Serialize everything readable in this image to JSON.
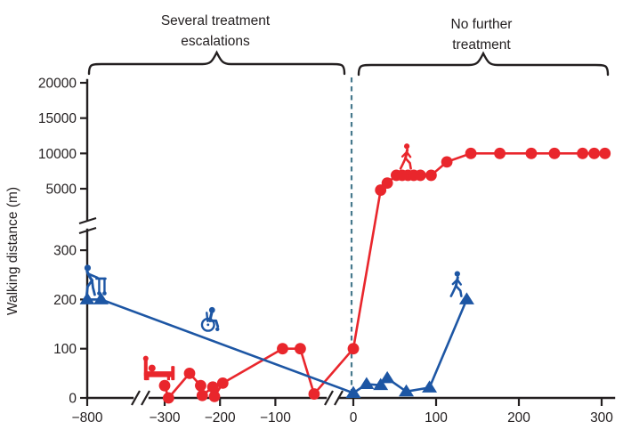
{
  "annotations": {
    "left_label_line1": "Several treatment",
    "left_label_line2": "escalations",
    "right_label_line1": "No further",
    "right_label_line2": "treatment"
  },
  "colors": {
    "red_series": "#e9262c",
    "blue_series": "#1d56a4",
    "event_line": "#47798d",
    "axis": "#231f20",
    "background": "#ffffff"
  },
  "chart_data": {
    "type": "line",
    "title": "",
    "xlabel": "",
    "ylabel": "Walking distance (m)",
    "x_ticks": [
      -800,
      -300,
      -200,
      -100,
      0,
      100,
      200,
      300
    ],
    "y_ticks_upper_panel": [
      20000,
      15000,
      10000,
      5000
    ],
    "y_ticks_lower_panel": [
      300,
      200,
      100,
      0
    ],
    "y_axis_break_between": [
      340,
      4500
    ],
    "x_axis_breaks": [
      [
        -770,
        -320
      ],
      [
        -22,
        -4
      ]
    ],
    "event_line_x": 0,
    "grid": "off",
    "legend": "none",
    "series": [
      {
        "name": "red (circles)",
        "marker": "circle",
        "color": "#e9262c",
        "points": [
          [
            -300,
            25
          ],
          [
            -293,
            0
          ],
          [
            -255,
            50
          ],
          [
            -235,
            25
          ],
          [
            -232,
            5
          ],
          [
            -213,
            22
          ],
          [
            -210,
            3
          ],
          [
            -195,
            30
          ],
          [
            -87,
            100
          ],
          [
            -55,
            100
          ],
          [
            -30,
            8
          ],
          [
            0,
            100
          ],
          [
            33,
            4800
          ],
          [
            41,
            5800
          ],
          [
            52,
            6900
          ],
          [
            59,
            6900
          ],
          [
            66,
            6900
          ],
          [
            73,
            6900
          ],
          [
            81,
            6900
          ],
          [
            94,
            6900
          ],
          [
            113,
            8800
          ],
          [
            142,
            10000
          ],
          [
            177,
            10000
          ],
          [
            215,
            10000
          ],
          [
            243,
            10000
          ],
          [
            277,
            10000
          ],
          [
            291,
            10000
          ],
          [
            304,
            10000
          ]
        ]
      },
      {
        "name": "blue (triangles)",
        "marker": "triangle",
        "color": "#1d56a4",
        "points": [
          [
            -800,
            200
          ],
          [
            -775,
            200
          ],
          [
            0,
            10
          ],
          [
            16,
            28
          ],
          [
            33,
            26
          ],
          [
            41,
            40
          ],
          [
            64,
            13
          ],
          [
            92,
            21
          ],
          [
            137,
            200
          ]
        ]
      }
    ],
    "icons": [
      {
        "name": "person-with-walker-icon",
        "series": "blue",
        "x": -788,
        "y": 208
      },
      {
        "name": "wheelchair-icon",
        "series": "blue",
        "x": -220,
        "y": 136
      },
      {
        "name": "bed-icon",
        "series": "red",
        "x": -310,
        "y": 36
      },
      {
        "name": "walking-person-icon",
        "series": "red",
        "x": 63,
        "y": 7800
      },
      {
        "name": "walking-person-icon",
        "series": "blue",
        "x": 124,
        "y": 206
      }
    ]
  }
}
